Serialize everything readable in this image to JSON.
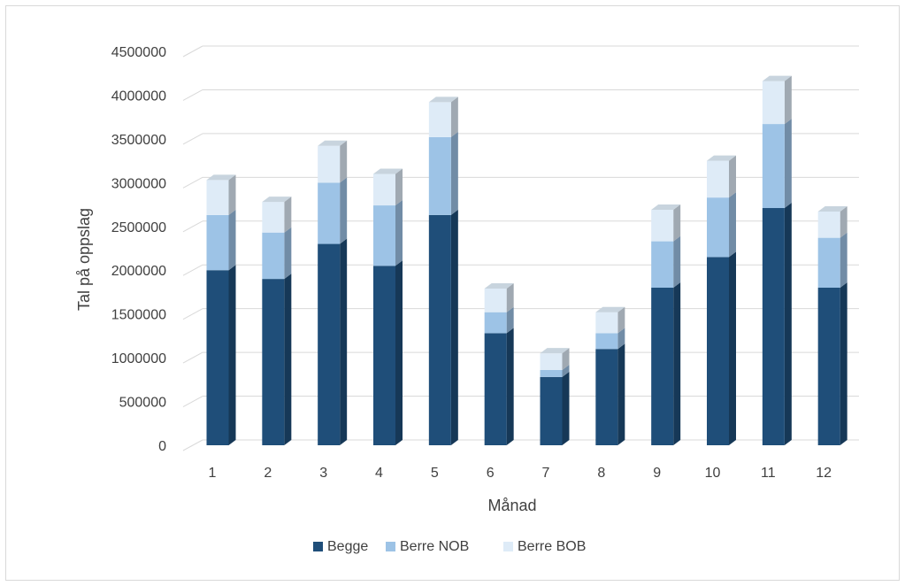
{
  "chart_data": {
    "type": "bar",
    "stacked": true,
    "three_d": true,
    "title": "",
    "xlabel": "Månad",
    "ylabel": "Tal på oppslag",
    "ylim": [
      0,
      4500000
    ],
    "ytick_step": 500000,
    "grid": true,
    "legend_position": "bottom",
    "categories": [
      "1",
      "2",
      "3",
      "4",
      "5",
      "6",
      "7",
      "8",
      "9",
      "10",
      "11",
      "12"
    ],
    "series": [
      {
        "name": "Begge",
        "color": "#1f4e79",
        "values": [
          2000000,
          1900000,
          2300000,
          2050000,
          2630000,
          1280000,
          780000,
          1100000,
          1800000,
          2150000,
          2710000,
          1800000
        ]
      },
      {
        "name": "Berre NOB",
        "color": "#9dc3e6",
        "values": [
          630000,
          530000,
          700000,
          690000,
          890000,
          240000,
          80000,
          180000,
          530000,
          680000,
          960000,
          570000
        ]
      },
      {
        "name": "Berre BOB",
        "color": "#deebf7",
        "values": [
          400000,
          350000,
          420000,
          360000,
          400000,
          270000,
          190000,
          240000,
          360000,
          420000,
          490000,
          300000
        ]
      }
    ]
  }
}
